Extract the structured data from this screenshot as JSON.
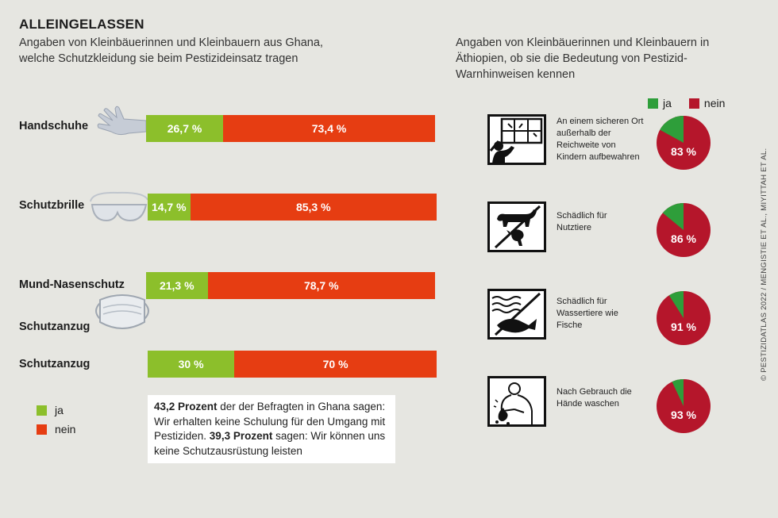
{
  "title": "ALLEINGELASSEN",
  "subtitle": "Angaben von Kleinbäuerinnen und Kleinbauern aus Ghana, welche Schutzkleidung sie beim Pestizideinsatz tragen",
  "subtitle_right": "Angaben von Kleinbäuerinnen und Kleinbauern in Äthiopien, ob sie die Bedeutung von Pestizid-Warnhinweisen kennen",
  "stray_label": "Schutzanzug",
  "colors": {
    "ja_left": "#8cbf2b",
    "nein_left": "#e63d12",
    "ja_right": "#2e9e3a",
    "nein_right": "#b5162b"
  },
  "legend": {
    "ja": "ja",
    "nein": "nein"
  },
  "infobox": {
    "p1_bold": "43,2 Prozent",
    "p1_text": " der der Befragten in Ghana sagen: Wir erhalten keine Schulung für den Umgang mit Pestiziden. ",
    "p2_bold": "39,3 Prozent",
    "p2_text": " sagen: Wir können uns keine Schutzausrüstung leisten"
  },
  "credit": "© PESTIZIDATLAS 2022 / MENGISTIE ET AL., MIYITTAH ET AL.",
  "chart_data": [
    {
      "type": "bar",
      "categories": [
        "Handschuhe",
        "Schutzbrille",
        "Mund-Nasenschutz",
        "Schutzanzug"
      ],
      "series": [
        {
          "name": "ja",
          "values": [
            26.7,
            14.7,
            21.3,
            30
          ],
          "labels": [
            "26,7 %",
            "14,7 %",
            "21,3 %",
            "30 %"
          ]
        },
        {
          "name": "nein",
          "values": [
            73.4,
            85.3,
            78.7,
            70
          ],
          "labels": [
            "73,4 %",
            "85,3 %",
            "78,7 %",
            "70 %"
          ]
        }
      ],
      "stacked": true,
      "icons": [
        "glove-icon",
        "goggles-icon",
        "face-mask-icon",
        ""
      ]
    },
    {
      "type": "pie",
      "categories": [
        "ja",
        "nein"
      ],
      "items": [
        {
          "label": "An einem sicheren Ort außerhalb der Reichweite von Kindern aufbewahren",
          "nein": 83,
          "value_label": "83 %",
          "icon": "keep-away-from-children-icon"
        },
        {
          "label": "Schädlich für Nutztiere",
          "nein": 86,
          "value_label": "86 %",
          "icon": "harmful-livestock-icon"
        },
        {
          "label": "Schädlich für Wassertiere wie Fische",
          "nein": 91,
          "value_label": "91 %",
          "icon": "harmful-fish-icon"
        },
        {
          "label": "Nach Gebrauch die Hände waschen",
          "nein": 93,
          "value_label": "93 %",
          "icon": "wash-hands-icon"
        }
      ]
    }
  ]
}
